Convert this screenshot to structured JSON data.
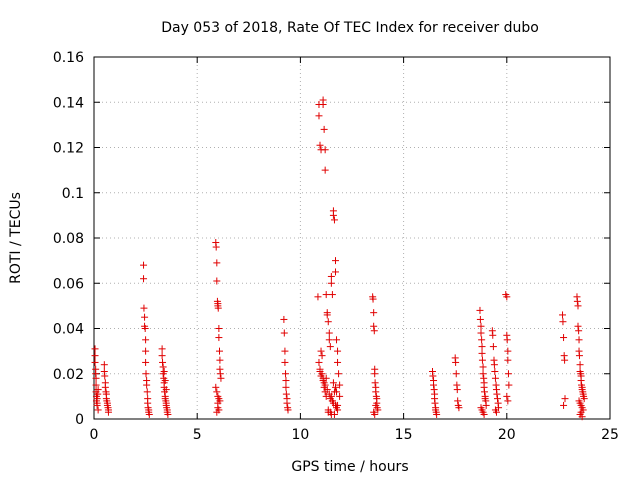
{
  "chart_data": {
    "type": "scatter",
    "title": "Day 053 of 2018, Rate Of TEC Index for receiver dubo",
    "xlabel": "GPS time / hours",
    "ylabel": "ROTI / TECUs",
    "xlim": [
      0,
      25
    ],
    "ylim": [
      0,
      0.16
    ],
    "xticks": [
      "0",
      "5",
      "10",
      "15",
      "20",
      "25"
    ],
    "yticks": [
      "0",
      "0.02",
      "0.04",
      "0.06",
      "0.08",
      "0.1",
      "0.12",
      "0.14",
      "0.16"
    ],
    "grid": true,
    "marker": "+",
    "color": "#e00000",
    "series": [
      {
        "x": [
          0.05,
          0.05,
          0.05,
          0.08,
          0.08,
          0.1,
          0.1,
          0.1,
          0.12,
          0.12,
          0.15,
          0.15,
          0.15,
          0.18,
          0.2,
          0.2,
          0.5,
          0.5,
          0.52,
          0.55,
          0.55,
          0.58,
          0.6,
          0.6,
          0.62,
          0.65,
          0.65,
          0.68,
          0.7,
          0.7,
          2.4,
          2.4,
          2.42,
          2.45,
          2.45,
          2.48,
          2.5,
          2.5,
          2.5,
          2.52,
          2.55,
          2.55,
          2.58,
          2.6,
          2.6,
          2.62,
          2.65,
          2.65,
          2.68,
          3.3,
          3.3,
          3.32,
          3.35,
          3.35,
          3.38,
          3.4,
          3.4,
          3.42,
          3.45,
          3.45,
          3.48,
          3.5,
          3.5,
          3.52,
          3.55,
          3.55,
          3.58,
          3.4,
          3.45,
          3.5,
          5.9,
          5.92,
          5.95,
          5.95,
          5.98,
          6.0,
          6.0,
          6.02,
          6.05,
          6.05,
          6.08,
          6.1,
          6.1,
          6.12,
          6.15,
          5.9,
          5.95,
          6.0,
          6.05,
          6.1,
          6.0,
          6.0,
          6.05,
          5.95,
          9.2,
          9.22,
          9.25,
          9.25,
          9.28,
          9.3,
          9.3,
          9.32,
          9.35,
          9.35,
          9.38,
          9.4,
          10.85,
          10.9,
          10.9,
          10.95,
          11.0,
          11.0,
          11.05,
          11.1,
          11.1,
          11.15,
          11.2,
          11.2,
          11.25,
          11.3,
          11.3,
          11.35,
          11.4,
          11.4,
          11.45,
          11.5,
          11.5,
          11.55,
          11.6,
          11.6,
          11.65,
          11.7,
          11.7,
          11.75,
          11.8,
          11.8,
          11.85,
          11.9,
          11.9,
          10.9,
          10.95,
          11.05,
          11.1,
          11.15,
          11.15,
          11.2,
          11.25,
          11.45,
          11.55,
          11.6,
          11.7,
          11.75,
          11.8,
          11.35,
          11.5,
          11.65,
          11.4,
          11.3,
          11.2,
          11.1,
          11.0,
          10.95,
          11.25,
          11.6,
          11.7,
          11.75,
          11.5,
          11.55,
          11.8,
          11.35,
          11.45,
          11.65,
          13.5,
          13.52,
          13.55,
          13.55,
          13.58,
          13.6,
          13.6,
          13.62,
          13.65,
          13.65,
          13.68,
          13.7,
          13.7,
          13.72,
          13.75,
          13.55,
          13.6,
          13.65,
          16.4,
          16.42,
          16.45,
          16.45,
          16.48,
          16.5,
          16.5,
          16.52,
          16.55,
          16.55,
          16.58,
          16.6,
          17.5,
          17.52,
          17.55,
          17.58,
          17.6,
          17.62,
          17.65,
          17.68,
          18.7,
          18.72,
          18.75,
          18.75,
          18.78,
          18.8,
          18.8,
          18.82,
          18.85,
          18.85,
          18.88,
          18.9,
          18.9,
          18.92,
          18.95,
          18.95,
          18.98,
          19.0,
          18.75,
          18.8,
          18.85,
          18.9,
          19.3,
          19.32,
          19.35,
          19.38,
          19.4,
          19.42,
          19.45,
          19.48,
          19.5,
          19.52,
          19.55,
          19.58,
          19.6,
          19.45,
          19.5,
          19.95,
          20.0,
          20.0,
          20.02,
          20.05,
          20.05,
          20.08,
          20.1,
          20.0,
          20.05,
          22.7,
          22.72,
          22.75,
          22.78,
          22.8,
          22.82,
          22.75,
          23.4,
          23.42,
          23.45,
          23.45,
          23.48,
          23.5,
          23.5,
          23.52,
          23.55,
          23.55,
          23.58,
          23.6,
          23.6,
          23.62,
          23.65,
          23.65,
          23.68,
          23.7,
          23.72,
          23.75,
          23.5,
          23.55,
          23.6,
          23.65,
          23.7,
          23.6,
          23.55,
          23.65
        ],
        "y": [
          0.031,
          0.028,
          0.025,
          0.022,
          0.02,
          0.018,
          0.015,
          0.012,
          0.01,
          0.008,
          0.007,
          0.006,
          0.009,
          0.011,
          0.004,
          0.013,
          0.024,
          0.021,
          0.019,
          0.016,
          0.014,
          0.012,
          0.011,
          0.009,
          0.008,
          0.007,
          0.006,
          0.005,
          0.004,
          0.003,
          0.068,
          0.062,
          0.049,
          0.045,
          0.041,
          0.04,
          0.035,
          0.03,
          0.025,
          0.02,
          0.017,
          0.015,
          0.012,
          0.009,
          0.007,
          0.005,
          0.004,
          0.003,
          0.002,
          0.031,
          0.028,
          0.025,
          0.023,
          0.02,
          0.018,
          0.016,
          0.014,
          0.012,
          0.01,
          0.009,
          0.008,
          0.007,
          0.006,
          0.005,
          0.004,
          0.003,
          0.002,
          0.021,
          0.017,
          0.013,
          0.078,
          0.076,
          0.069,
          0.061,
          0.052,
          0.051,
          0.05,
          0.049,
          0.04,
          0.036,
          0.03,
          0.026,
          0.022,
          0.02,
          0.018,
          0.014,
          0.012,
          0.01,
          0.009,
          0.008,
          0.007,
          0.005,
          0.004,
          0.003,
          0.044,
          0.038,
          0.03,
          0.025,
          0.02,
          0.017,
          0.014,
          0.011,
          0.009,
          0.007,
          0.005,
          0.004,
          0.054,
          0.139,
          0.134,
          0.121,
          0.119,
          0.03,
          0.028,
          0.141,
          0.139,
          0.128,
          0.119,
          0.11,
          0.055,
          0.047,
          0.046,
          0.043,
          0.038,
          0.035,
          0.032,
          0.063,
          0.06,
          0.055,
          0.092,
          0.09,
          0.088,
          0.07,
          0.065,
          0.035,
          0.03,
          0.025,
          0.02,
          0.015,
          0.01,
          0.025,
          0.022,
          0.02,
          0.018,
          0.016,
          0.014,
          0.012,
          0.01,
          0.009,
          0.008,
          0.007,
          0.006,
          0.005,
          0.004,
          0.003,
          0.002,
          0.012,
          0.011,
          0.013,
          0.015,
          0.017,
          0.019,
          0.021,
          0.018,
          0.016,
          0.014,
          0.012,
          0.01,
          0.008,
          0.006,
          0.004,
          0.003,
          0.002,
          0.054,
          0.053,
          0.047,
          0.041,
          0.039,
          0.022,
          0.02,
          0.016,
          0.014,
          0.012,
          0.01,
          0.009,
          0.007,
          0.005,
          0.004,
          0.003,
          0.002,
          0.006,
          0.021,
          0.019,
          0.017,
          0.015,
          0.013,
          0.011,
          0.009,
          0.007,
          0.005,
          0.004,
          0.003,
          0.002,
          0.027,
          0.025,
          0.02,
          0.015,
          0.013,
          0.008,
          0.006,
          0.005,
          0.048,
          0.044,
          0.041,
          0.038,
          0.035,
          0.032,
          0.029,
          0.026,
          0.023,
          0.02,
          0.018,
          0.016,
          0.014,
          0.012,
          0.01,
          0.009,
          0.008,
          0.006,
          0.005,
          0.004,
          0.003,
          0.002,
          0.039,
          0.037,
          0.032,
          0.026,
          0.024,
          0.021,
          0.018,
          0.015,
          0.013,
          0.011,
          0.009,
          0.007,
          0.005,
          0.004,
          0.003,
          0.055,
          0.054,
          0.037,
          0.035,
          0.03,
          0.026,
          0.02,
          0.015,
          0.01,
          0.008,
          0.046,
          0.043,
          0.036,
          0.028,
          0.026,
          0.009,
          0.006,
          0.054,
          0.052,
          0.05,
          0.041,
          0.039,
          0.035,
          0.03,
          0.028,
          0.024,
          0.021,
          0.02,
          0.019,
          0.017,
          0.015,
          0.014,
          0.013,
          0.012,
          0.011,
          0.01,
          0.009,
          0.008,
          0.007,
          0.006,
          0.005,
          0.004,
          0.003,
          0.002,
          0.001
        ]
      }
    ]
  }
}
